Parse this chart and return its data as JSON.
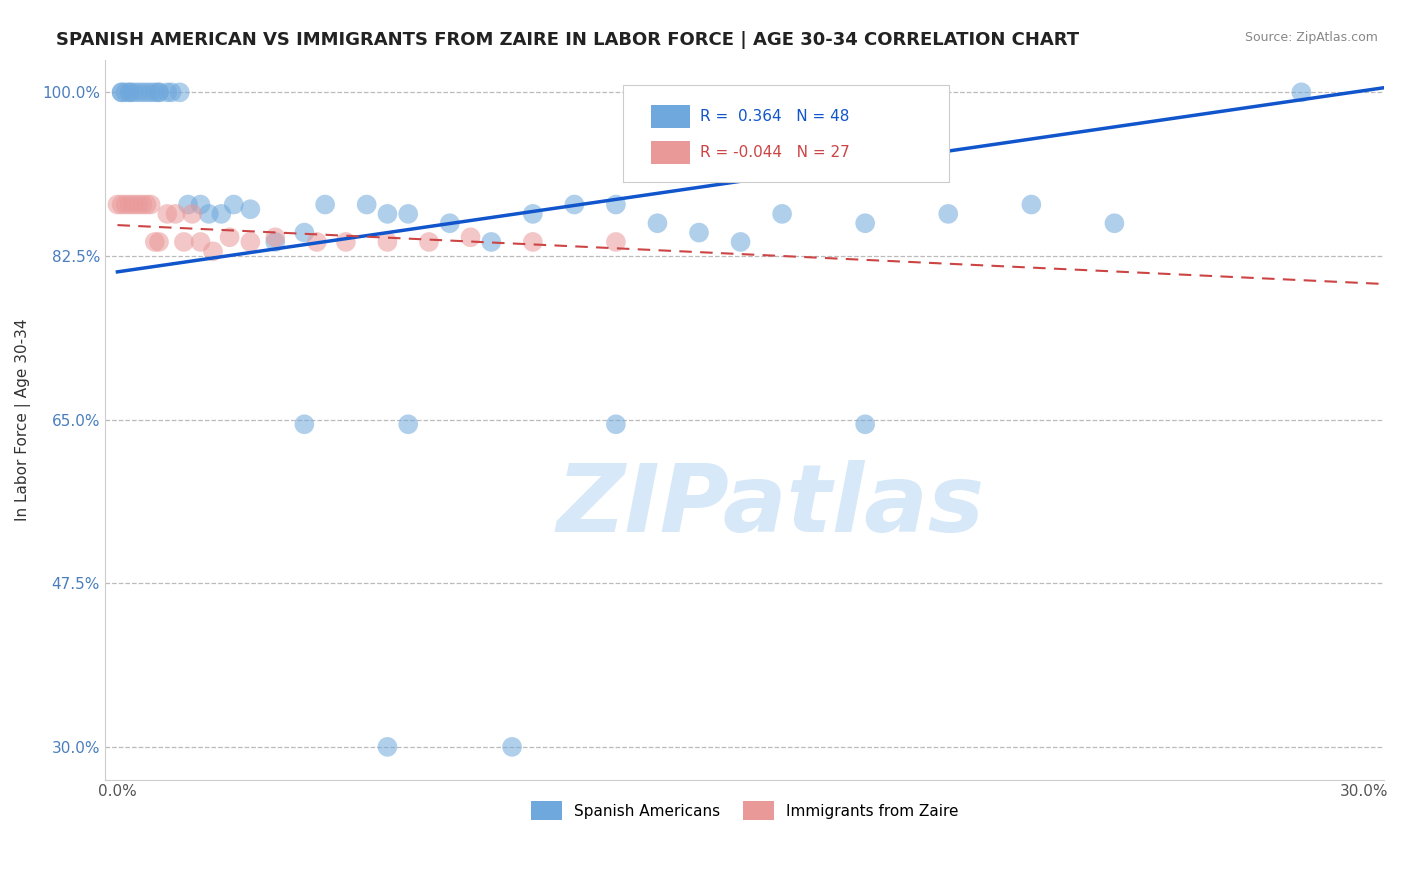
{
  "title": "SPANISH AMERICAN VS IMMIGRANTS FROM ZAIRE IN LABOR FORCE | AGE 30-34 CORRELATION CHART",
  "source": "Source: ZipAtlas.com",
  "ylabel": "In Labor Force | Age 30-34",
  "r_blue": 0.364,
  "n_blue": 48,
  "r_pink": -0.044,
  "n_pink": 27,
  "xlim": [
    -0.003,
    0.305
  ],
  "ylim": [
    0.265,
    1.035
  ],
  "yticks": [
    0.3,
    0.475,
    0.65,
    0.825,
    1.0
  ],
  "ytick_labels": [
    "30.0%",
    "47.5%",
    "65.0%",
    "82.5%",
    "100.0%"
  ],
  "xticks": [
    0.0,
    0.05,
    0.1,
    0.15,
    0.2,
    0.25,
    0.3
  ],
  "xtick_labels": [
    "0.0%",
    "",
    "",
    "",
    "",
    "",
    "30.0%"
  ],
  "blue_color": "#6fa8dc",
  "pink_color": "#ea9999",
  "blue_line_color": "#1155cc",
  "pink_line_color": "#cc4444",
  "watermark_color": "#d0e4f7",
  "background_color": "#ffffff",
  "blue_line_x": [
    0.0,
    0.305
  ],
  "blue_line_y": [
    0.808,
    1.005
  ],
  "pink_line_x": [
    0.0,
    0.305
  ],
  "pink_line_y": [
    0.858,
    0.795
  ],
  "blue_x": [
    0.001,
    0.001,
    0.002,
    0.003,
    0.003,
    0.004,
    0.005,
    0.006,
    0.007,
    0.008,
    0.009,
    0.01,
    0.01,
    0.012,
    0.013,
    0.015,
    0.017,
    0.02,
    0.022,
    0.025,
    0.028,
    0.032,
    0.038,
    0.045,
    0.05,
    0.06,
    0.065,
    0.07,
    0.08,
    0.09,
    0.1,
    0.11,
    0.12,
    0.13,
    0.14,
    0.15,
    0.16,
    0.18,
    0.2,
    0.22,
    0.24,
    0.285,
    0.07,
    0.12,
    0.18,
    0.065,
    0.095,
    0.045
  ],
  "blue_y": [
    1.0,
    1.0,
    1.0,
    1.0,
    1.0,
    1.0,
    1.0,
    1.0,
    1.0,
    1.0,
    1.0,
    1.0,
    1.0,
    1.0,
    1.0,
    1.0,
    0.88,
    0.88,
    0.87,
    0.87,
    0.88,
    0.875,
    0.84,
    0.85,
    0.88,
    0.88,
    0.87,
    0.87,
    0.86,
    0.84,
    0.87,
    0.88,
    0.88,
    0.86,
    0.85,
    0.84,
    0.87,
    0.86,
    0.87,
    0.88,
    0.86,
    1.0,
    0.645,
    0.645,
    0.645,
    0.3,
    0.3,
    0.645
  ],
  "pink_x": [
    0.0,
    0.001,
    0.002,
    0.003,
    0.004,
    0.005,
    0.006,
    0.007,
    0.008,
    0.009,
    0.01,
    0.012,
    0.014,
    0.016,
    0.018,
    0.02,
    0.023,
    0.027,
    0.032,
    0.038,
    0.048,
    0.055,
    0.065,
    0.075,
    0.085,
    0.1,
    0.12
  ],
  "pink_y": [
    0.88,
    0.88,
    0.88,
    0.88,
    0.88,
    0.88,
    0.88,
    0.88,
    0.88,
    0.84,
    0.84,
    0.87,
    0.87,
    0.84,
    0.87,
    0.84,
    0.83,
    0.845,
    0.84,
    0.845,
    0.84,
    0.84,
    0.84,
    0.84,
    0.845,
    0.84,
    0.84
  ]
}
